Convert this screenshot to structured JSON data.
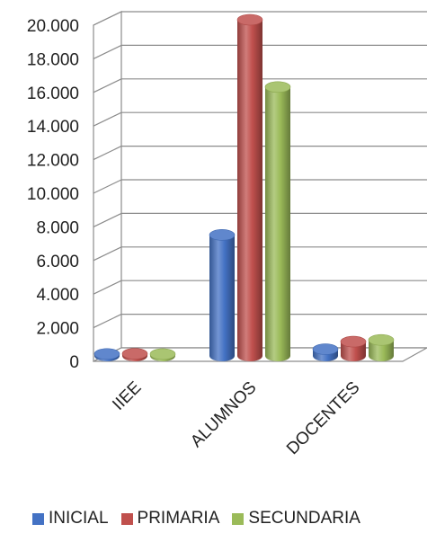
{
  "chart_data": {
    "type": "bar",
    "style": "3d-cylinder",
    "categories": [
      "IIEE",
      "ALUMNOS",
      "DOCENTES"
    ],
    "series": [
      {
        "name": "INICIAL",
        "color": "#4472c4",
        "values": [
          120,
          7200,
          400
        ]
      },
      {
        "name": "PRIMARIA",
        "color": "#c0504d",
        "values": [
          130,
          20000,
          850
        ]
      },
      {
        "name": "SECUNDARIA",
        "color": "#9bbb59",
        "values": [
          110,
          16000,
          950
        ]
      }
    ],
    "yticks": [
      "0",
      "2.000",
      "4.000",
      "6.000",
      "8.000",
      "10.000",
      "12.000",
      "14.000",
      "16.000",
      "18.000",
      "20.000"
    ],
    "ylim": [
      0,
      20000
    ],
    "grid": true,
    "legend_position": "bottom",
    "title": "",
    "xlabel": "",
    "ylabel": ""
  }
}
